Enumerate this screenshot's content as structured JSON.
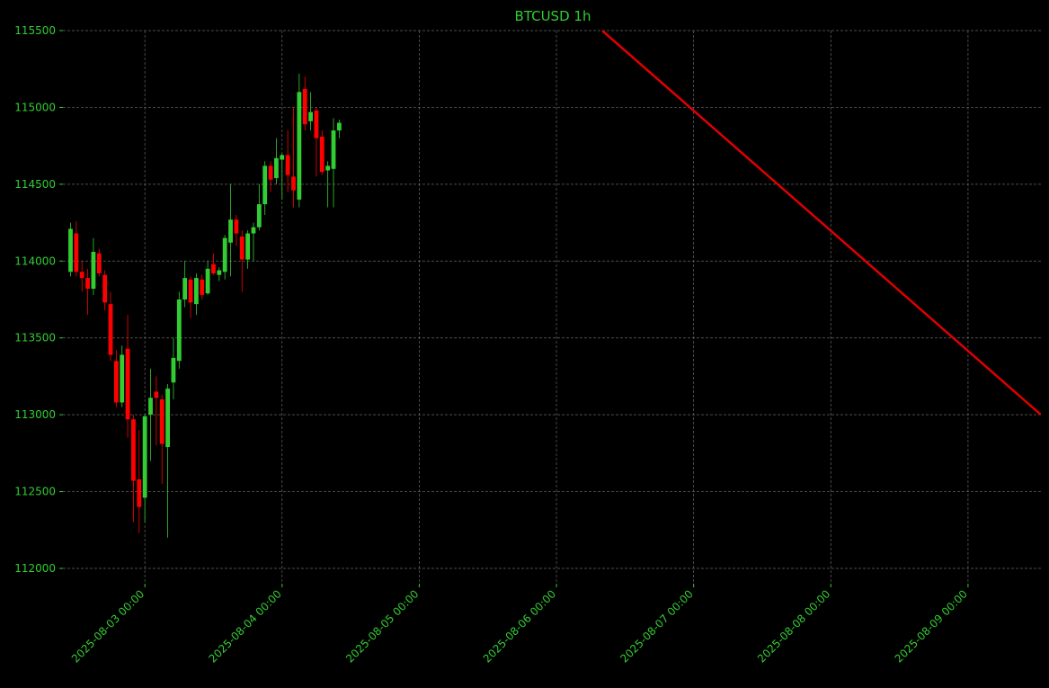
{
  "chart_data": {
    "type": "candlestick",
    "title": "BTCUSD 1h",
    "x": [
      "2025-08-02 11:00",
      "2025-08-02 12:00",
      "2025-08-02 13:00",
      "2025-08-02 14:00",
      "2025-08-02 15:00",
      "2025-08-02 16:00",
      "2025-08-02 17:00",
      "2025-08-02 18:00",
      "2025-08-02 19:00",
      "2025-08-02 20:00",
      "2025-08-02 21:00",
      "2025-08-02 22:00",
      "2025-08-02 23:00",
      "2025-08-03 00:00",
      "2025-08-03 01:00",
      "2025-08-03 02:00",
      "2025-08-03 03:00",
      "2025-08-03 04:00",
      "2025-08-03 05:00",
      "2025-08-03 06:00",
      "2025-08-03 07:00",
      "2025-08-03 08:00",
      "2025-08-03 09:00",
      "2025-08-03 10:00",
      "2025-08-03 11:00",
      "2025-08-03 12:00",
      "2025-08-03 13:00",
      "2025-08-03 14:00",
      "2025-08-03 15:00",
      "2025-08-03 16:00",
      "2025-08-03 17:00",
      "2025-08-03 18:00",
      "2025-08-03 19:00",
      "2025-08-03 20:00",
      "2025-08-03 21:00",
      "2025-08-03 22:00",
      "2025-08-03 23:00",
      "2025-08-04 00:00",
      "2025-08-04 01:00",
      "2025-08-04 02:00",
      "2025-08-04 03:00",
      "2025-08-04 04:00",
      "2025-08-04 05:00",
      "2025-08-04 06:00",
      "2025-08-04 07:00",
      "2025-08-04 08:00",
      "2025-08-04 09:00",
      "2025-08-04 10:00"
    ],
    "open": [
      113930,
      114180,
      113930,
      113890,
      113820,
      114050,
      113910,
      113720,
      113350,
      113080,
      113430,
      112970,
      112580,
      112460,
      113000,
      113150,
      113100,
      112790,
      113210,
      113350,
      113750,
      113880,
      113720,
      113880,
      113790,
      113980,
      113910,
      113930,
      114120,
      114270,
      114160,
      114010,
      114180,
      114220,
      114370,
      114620,
      114540,
      114660,
      114690,
      114550,
      114400,
      115120,
      114910,
      114980,
      114810,
      114590,
      114600,
      114850
    ],
    "high": [
      114250,
      114260,
      114000,
      113950,
      114150,
      114080,
      113940,
      113800,
      113420,
      113450,
      113650,
      113000,
      112900,
      113000,
      113300,
      113250,
      113130,
      113200,
      113500,
      113800,
      114000,
      113900,
      113920,
      113910,
      114000,
      114050,
      113960,
      114170,
      114500,
      114300,
      114200,
      114200,
      114250,
      114500,
      114650,
      114650,
      114800,
      114700,
      114850,
      115000,
      115220,
      115200,
      115100,
      115000,
      114850,
      114650,
      114930,
      114920
    ],
    "low": [
      113900,
      113900,
      113800,
      113650,
      113780,
      113900,
      113680,
      113350,
      113050,
      113050,
      112850,
      112300,
      112230,
      112300,
      112700,
      112800,
      112550,
      112200,
      113100,
      113300,
      113700,
      113630,
      113650,
      113750,
      113780,
      113910,
      113870,
      113880,
      113900,
      114100,
      113800,
      113950,
      114000,
      114200,
      114300,
      114450,
      114500,
      114400,
      114450,
      114350,
      114350,
      114850,
      114850,
      114550,
      114560,
      114350,
      114350,
      114800
    ],
    "close": [
      114210,
      113930,
      113890,
      113820,
      114060,
      113920,
      113730,
      113390,
      113080,
      113390,
      112970,
      112570,
      112400,
      112990,
      113110,
      113110,
      112810,
      113170,
      113370,
      113750,
      113890,
      113730,
      113890,
      113780,
      113950,
      113920,
      113940,
      114150,
      114270,
      114180,
      114010,
      114180,
      114220,
      114370,
      114620,
      114530,
      114670,
      114690,
      114560,
      114460,
      115100,
      114890,
      114970,
      114800,
      114580,
      114620,
      114850,
      114900
    ],
    "up_color": "#32cd32",
    "down_color": "#ff0000",
    "lines": [
      {
        "x": [
          "2025-08-06 08:00",
          "2025-08-09 12:45"
        ],
        "y": [
          115500,
          113000
        ],
        "color": "#e00000"
      }
    ],
    "xlim": [
      "2025-08-02 09:40",
      "2025-08-09 12:45"
    ],
    "ylim": [
      111900,
      115500
    ],
    "xticks": [
      "2025-08-03 00:00",
      "2025-08-04 00:00",
      "2025-08-05 00:00",
      "2025-08-06 00:00",
      "2025-08-07 00:00",
      "2025-08-08 00:00",
      "2025-08-09 00:00"
    ],
    "yticks": [
      112000,
      112500,
      113000,
      113500,
      114000,
      114500,
      115000,
      115500
    ],
    "grid": true
  }
}
